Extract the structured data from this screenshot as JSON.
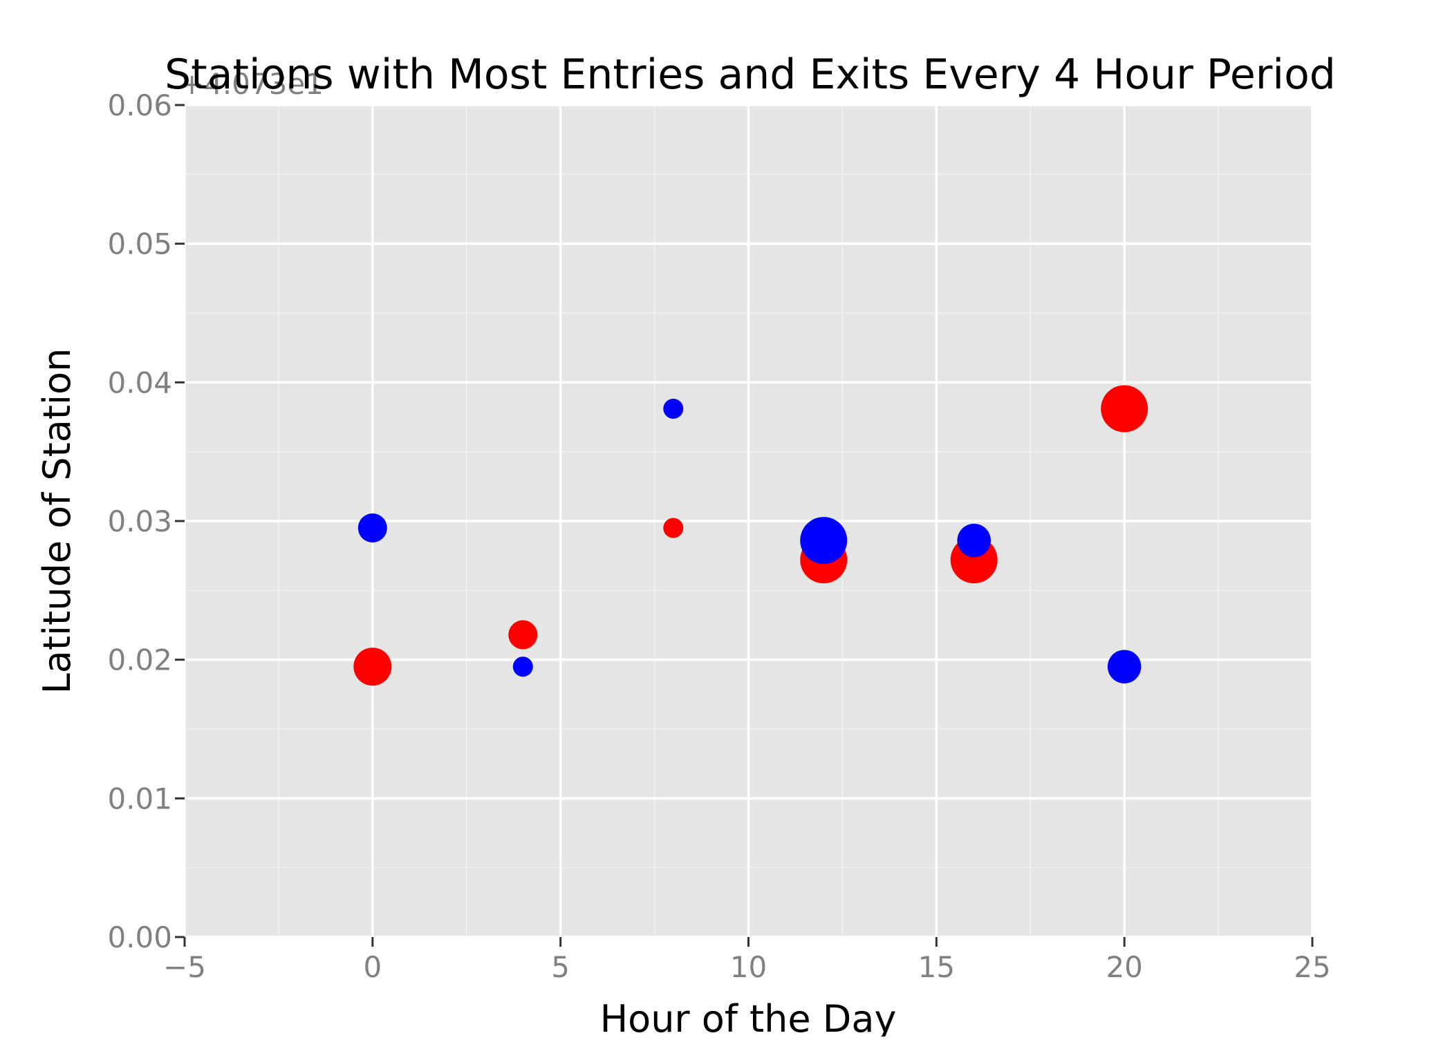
{
  "chart_data": {
    "type": "scatter",
    "title": "Stations with Most Entries and Exits Every 4 Hour Period",
    "xlabel": "Hour of the Day",
    "ylabel": "Latitude of Station",
    "y_offset_label": "+4.073e1",
    "xlim": [
      -5,
      25
    ],
    "ylim": [
      0.0,
      0.06
    ],
    "x_ticks": [
      -5,
      0,
      5,
      10,
      15,
      20,
      25
    ],
    "x_tick_labels": [
      "−5",
      "0",
      "5",
      "10",
      "15",
      "20",
      "25"
    ],
    "y_ticks": [
      0.0,
      0.01,
      0.02,
      0.03,
      0.04,
      0.05,
      0.06
    ],
    "y_tick_labels": [
      "0.00",
      "0.01",
      "0.02",
      "0.03",
      "0.04",
      "0.05",
      "0.06"
    ],
    "grid": true,
    "background": "#e5e5e5",
    "series": [
      {
        "color": "#ff0000",
        "points": [
          {
            "x": 0,
            "y": 0.0195,
            "size": 3
          },
          {
            "x": 4,
            "y": 0.0218,
            "size": 2
          },
          {
            "x": 8,
            "y": 0.0295,
            "size": 1
          },
          {
            "x": 12,
            "y": 0.0272,
            "size": 4
          },
          {
            "x": 16,
            "y": 0.0272,
            "size": 4
          },
          {
            "x": 20,
            "y": 0.0381,
            "size": 4
          }
        ]
      },
      {
        "color": "#0000ff",
        "points": [
          {
            "x": 0,
            "y": 0.0295,
            "size": 2
          },
          {
            "x": 4,
            "y": 0.0195,
            "size": 1
          },
          {
            "x": 8,
            "y": 0.0381,
            "size": 1
          },
          {
            "x": 12,
            "y": 0.0286,
            "size": 4
          },
          {
            "x": 16,
            "y": 0.0286,
            "size": 2.5
          },
          {
            "x": 20,
            "y": 0.0195,
            "size": 2.5
          }
        ]
      }
    ]
  }
}
